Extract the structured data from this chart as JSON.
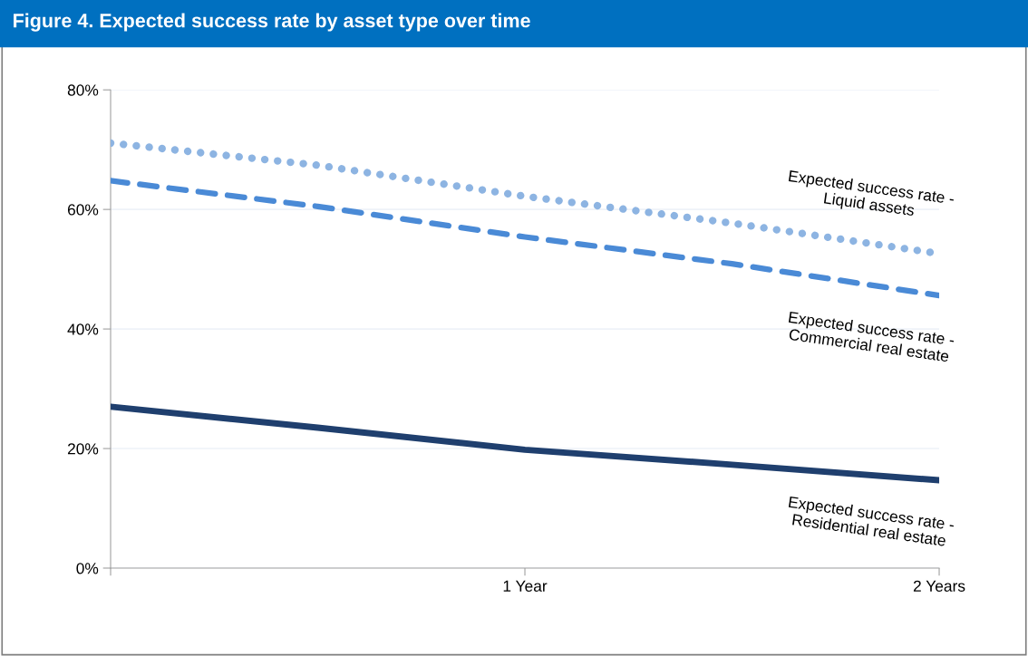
{
  "chart_data": {
    "type": "line",
    "title": "Figure 4. Expected success rate by asset type over time",
    "x": [
      0,
      0.5,
      1,
      1.5,
      2
    ],
    "xlim": [
      0,
      2
    ],
    "xticks": [
      {
        "value": 0,
        "label": null
      },
      {
        "value": 1,
        "label": "1 Year"
      },
      {
        "value": 2,
        "label": "2 Years"
      }
    ],
    "ylim": [
      0,
      80
    ],
    "yticks": [
      {
        "value": 0,
        "label": "0%"
      },
      {
        "value": 20,
        "label": "20%"
      },
      {
        "value": 40,
        "label": "40%"
      },
      {
        "value": 60,
        "label": "60%"
      },
      {
        "value": 80,
        "label": "80%"
      }
    ],
    "grid": "y",
    "legend": false,
    "marker": "none",
    "series": [
      {
        "name": "Expected success rate - Liquid assets",
        "color": "#8db4e2",
        "line_style": "dotted",
        "values": [
          71.1,
          67.4,
          62.2,
          57.7,
          52.6
        ]
      },
      {
        "name": "Expected success rate - Commercial real estate",
        "color": "#4a8ad6",
        "line_style": "dashed",
        "values": [
          64.8,
          60.5,
          55.4,
          50.9,
          45.6
        ]
      },
      {
        "name": "Expected success rate - Residential real estate",
        "color": "#1f3f6e",
        "line_style": "solid",
        "values": [
          27.0,
          23.5,
          19.8,
          17.3,
          14.7
        ]
      }
    ]
  }
}
